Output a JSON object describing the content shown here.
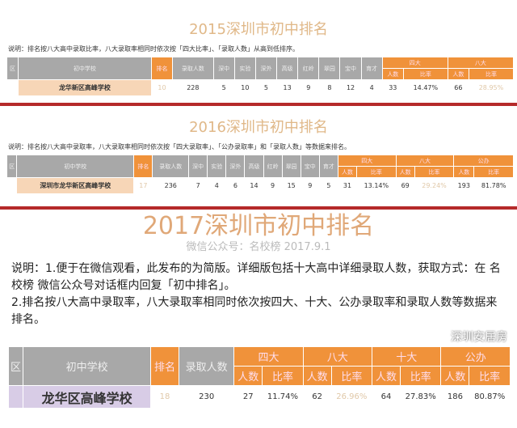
{
  "y2015": {
    "title": "2015深圳市初中排名",
    "note": "说明：排名按八大高中录取比率，八大录取率相同时依次按「四大比率」、「录取人数」从高到低排序。",
    "headers": [
      "区",
      "初中学校",
      "排名",
      "录取人数",
      "深中",
      "实验",
      "深外",
      "高级",
      "红岭",
      "翠园",
      "宝中",
      "育才",
      "四大",
      "八大",
      "人数",
      "比率",
      "人数",
      "比率"
    ],
    "row": [
      "",
      "龙华新区高峰学校",
      "10",
      "228",
      "5",
      "10",
      "5",
      "13",
      "9",
      "8",
      "12",
      "4",
      "33",
      "14.47%",
      "66",
      "28.95%"
    ]
  },
  "y2016": {
    "title": "2016深圳市初中排名",
    "note": "说明：排名按八大高中录取率，八大录取率相同时依次按「四大录取率」、「公办录取率」和「录取人数」等数据来排名。",
    "headers": [
      "区",
      "初中学校",
      "排名",
      "录取人数",
      "深中",
      "实验",
      "深外",
      "高级",
      "红岭",
      "翠园",
      "宝中",
      "育才",
      "四大",
      "八大",
      "公办",
      "人数",
      "比率",
      "人数",
      "比率",
      "人数",
      "比率"
    ],
    "row": [
      "",
      "深圳市龙华新区高峰学校",
      "17",
      "236",
      "7",
      "4",
      "6",
      "14",
      "9",
      "15",
      "9",
      "5",
      "31",
      "13.14%",
      "69",
      "29.24%",
      "193",
      "81.78%"
    ]
  },
  "y2017": {
    "title": "2017深圳市初中排名",
    "subtitle": "微信公众号：名校榜 2017.9.1",
    "note1": "说明：1.便于在微信观看，此发布的为简版。详细版包括十大高中详细录取人数，获取方式：在 名校榜 微信公众号对话框内回复「初中排名」。",
    "note2": "2.排名按八大高中录取率，八大录取率相同时依次按四大、十大、公办录取率和录取人数等数据来排名。",
    "headers": [
      "区",
      "初中学校",
      "排名",
      "录取人数",
      "四大",
      "八大",
      "十大",
      "公办",
      "人数",
      "比率"
    ],
    "row": [
      "",
      "龙华区高峰学校",
      "18",
      "230",
      "27",
      "11.74%",
      "62",
      "26.96%",
      "64",
      "27.83%",
      "186",
      "80.87%"
    ]
  },
  "watermark": "深圳安居房"
}
